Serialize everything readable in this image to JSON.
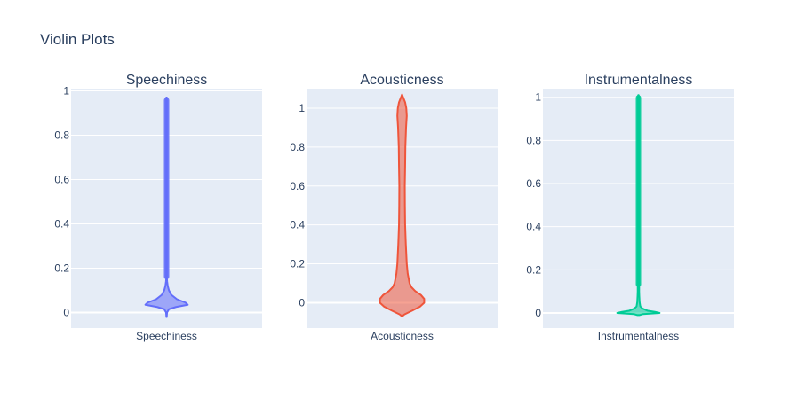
{
  "title": "Violin Plots",
  "chart_data": [
    {
      "type": "violin",
      "title": "Speechiness",
      "category": "Speechiness",
      "color": "#636efa",
      "ylim": [
        -0.07,
        1.01
      ],
      "yticks": [
        0,
        0.2,
        0.4,
        0.6,
        0.8,
        1
      ],
      "ytick_labels": [
        "0",
        "0.2",
        "0.4",
        "0.6",
        "0.8",
        "1"
      ],
      "min": -0.02,
      "max": 0.97,
      "outlier_start": 0.15,
      "profile": [
        [
          -0.02,
          0.003
        ],
        [
          0.0,
          0.01
        ],
        [
          0.015,
          0.05
        ],
        [
          0.025,
          0.2
        ],
        [
          0.035,
          0.45
        ],
        [
          0.045,
          0.4
        ],
        [
          0.06,
          0.22
        ],
        [
          0.08,
          0.1
        ],
        [
          0.1,
          0.05
        ],
        [
          0.12,
          0.025
        ],
        [
          0.14,
          0.012
        ],
        [
          0.155,
          0.006
        ],
        [
          0.2,
          0.006
        ],
        [
          0.97,
          0.006
        ]
      ]
    },
    {
      "type": "violin",
      "title": "Acousticness",
      "category": "Acousticness",
      "color": "#ef553b",
      "ylim": [
        -0.13,
        1.1
      ],
      "yticks": [
        0,
        0.2,
        0.4,
        0.6,
        0.8,
        1
      ],
      "ytick_labels": [
        "0",
        "0.2",
        "0.4",
        "0.6",
        "0.8",
        "1"
      ],
      "min": -0.07,
      "max": 1.07,
      "outlier_start": null,
      "profile": [
        [
          -0.07,
          0.0
        ],
        [
          -0.06,
          0.05
        ],
        [
          -0.04,
          0.22
        ],
        [
          -0.02,
          0.38
        ],
        [
          0.0,
          0.47
        ],
        [
          0.02,
          0.47
        ],
        [
          0.04,
          0.4
        ],
        [
          0.06,
          0.28
        ],
        [
          0.08,
          0.2
        ],
        [
          0.1,
          0.16
        ],
        [
          0.15,
          0.12
        ],
        [
          0.2,
          0.1
        ],
        [
          0.3,
          0.08
        ],
        [
          0.4,
          0.065
        ],
        [
          0.5,
          0.06
        ],
        [
          0.6,
          0.058
        ],
        [
          0.7,
          0.065
        ],
        [
          0.8,
          0.07
        ],
        [
          0.9,
          0.085
        ],
        [
          0.96,
          0.1
        ],
        [
          1.0,
          0.09
        ],
        [
          1.03,
          0.065
        ],
        [
          1.06,
          0.015
        ],
        [
          1.07,
          0.0
        ]
      ]
    },
    {
      "type": "violin",
      "title": "Instrumentalness",
      "category": "Instrumentalness",
      "color": "#00cc96",
      "ylim": [
        -0.07,
        1.04
      ],
      "yticks": [
        0,
        0.2,
        0.4,
        0.6,
        0.8,
        1
      ],
      "ytick_labels": [
        "0",
        "0.2",
        "0.4",
        "0.6",
        "0.8",
        "1"
      ],
      "min": -0.01,
      "max": 1.01,
      "outlier_start": 0.12,
      "profile": [
        [
          -0.01,
          0.02
        ],
        [
          -0.005,
          0.1
        ],
        [
          0.0,
          0.45
        ],
        [
          0.005,
          0.35
        ],
        [
          0.01,
          0.2
        ],
        [
          0.02,
          0.09
        ],
        [
          0.03,
          0.04
        ],
        [
          0.05,
          0.025
        ],
        [
          0.08,
          0.018
        ],
        [
          0.1,
          0.015
        ],
        [
          0.12,
          0.015
        ],
        [
          0.15,
          0.013
        ],
        [
          1.0,
          0.013
        ],
        [
          1.01,
          0.005
        ]
      ]
    }
  ]
}
